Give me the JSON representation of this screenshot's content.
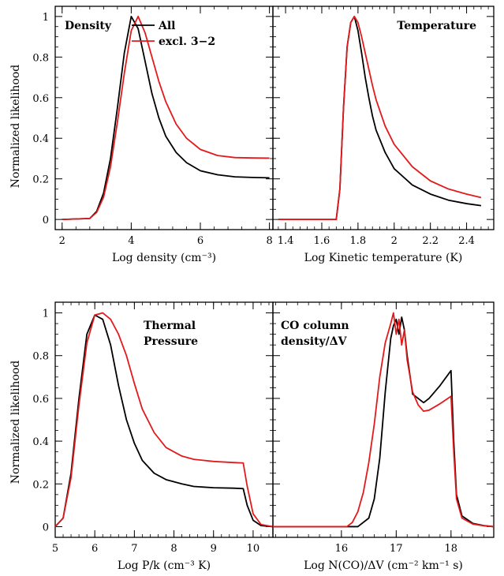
{
  "ylabel": "Normalized likelihood",
  "legend": [
    {
      "name": "All",
      "color": "#000000"
    },
    {
      "name": "excl. 3−2",
      "color": "#e31a1c"
    }
  ],
  "colors": {
    "all": "#000000",
    "excl": "#e31a1c"
  },
  "chart_data": [
    {
      "type": "line",
      "title": "Density",
      "xlabel": "Log density (cm⁻³)",
      "xlim": [
        1.8,
        8.1
      ],
      "ylim": [
        -0.05,
        1.05
      ],
      "xticks": [
        2,
        4,
        6,
        8
      ],
      "yticks": [
        0,
        0.2,
        0.4,
        0.6,
        0.8,
        1
      ],
      "grid": false,
      "series": [
        {
          "name": "All",
          "x": [
            2,
            2.8,
            3.0,
            3.2,
            3.4,
            3.6,
            3.8,
            4.0,
            4.2,
            4.4,
            4.6,
            4.8,
            5.0,
            5.3,
            5.6,
            6.0,
            6.5,
            7.0,
            7.5,
            8.0
          ],
          "y": [
            0,
            0.005,
            0.04,
            0.13,
            0.3,
            0.55,
            0.82,
            1.0,
            0.94,
            0.78,
            0.62,
            0.5,
            0.41,
            0.33,
            0.28,
            0.24,
            0.22,
            0.21,
            0.207,
            0.205
          ]
        },
        {
          "name": "excl. 3−2",
          "x": [
            2,
            2.8,
            3.0,
            3.2,
            3.4,
            3.6,
            3.8,
            4.0,
            4.2,
            4.4,
            4.6,
            4.8,
            5.0,
            5.3,
            5.6,
            6.0,
            6.5,
            7.0,
            7.5,
            8.0
          ],
          "y": [
            0,
            0.005,
            0.035,
            0.11,
            0.26,
            0.48,
            0.72,
            0.93,
            1.0,
            0.92,
            0.8,
            0.68,
            0.58,
            0.47,
            0.4,
            0.345,
            0.315,
            0.305,
            0.303,
            0.302
          ]
        }
      ]
    },
    {
      "type": "line",
      "title": "Temperature",
      "xlabel": "Log Kinetic temperature (K)",
      "xlim": [
        1.33,
        2.55
      ],
      "ylim": [
        -0.05,
        1.05
      ],
      "xticks": [
        1.4,
        1.6,
        1.8,
        2,
        2.2,
        2.4
      ],
      "yticks": [
        0,
        0.2,
        0.4,
        0.6,
        0.8,
        1
      ],
      "grid": false,
      "series": [
        {
          "name": "All",
          "x": [
            1.36,
            1.68,
            1.7,
            1.72,
            1.74,
            1.76,
            1.78,
            1.8,
            1.82,
            1.84,
            1.86,
            1.88,
            1.9,
            1.95,
            2.0,
            2.1,
            2.2,
            2.3,
            2.4,
            2.48
          ],
          "y": [
            0,
            0,
            0.15,
            0.55,
            0.85,
            0.97,
            1.0,
            0.93,
            0.82,
            0.7,
            0.6,
            0.51,
            0.44,
            0.33,
            0.25,
            0.17,
            0.125,
            0.095,
            0.078,
            0.068
          ]
        },
        {
          "name": "excl. 3−2",
          "x": [
            1.36,
            1.68,
            1.7,
            1.72,
            1.74,
            1.76,
            1.78,
            1.8,
            1.82,
            1.84,
            1.86,
            1.88,
            1.9,
            1.95,
            2.0,
            2.1,
            2.2,
            2.3,
            2.4,
            2.48
          ],
          "y": [
            0,
            0,
            0.15,
            0.55,
            0.85,
            0.97,
            1.0,
            0.97,
            0.9,
            0.82,
            0.74,
            0.66,
            0.59,
            0.46,
            0.37,
            0.26,
            0.19,
            0.15,
            0.125,
            0.108
          ]
        }
      ]
    },
    {
      "type": "line",
      "title": "Thermal\nPressure",
      "xlabel": "Log P/k (cm⁻³ K)",
      "xlim": [
        5.0,
        10.5
      ],
      "ylim": [
        -0.05,
        1.05
      ],
      "xticks": [
        5,
        6,
        7,
        8,
        9,
        10
      ],
      "yticks": [
        0,
        0.2,
        0.4,
        0.6,
        0.8,
        1
      ],
      "grid": false,
      "series": [
        {
          "name": "All",
          "x": [
            5.0,
            5.2,
            5.4,
            5.6,
            5.8,
            6.0,
            6.2,
            6.4,
            6.6,
            6.8,
            7.0,
            7.2,
            7.5,
            7.8,
            8.2,
            8.5,
            9.0,
            9.5,
            9.75,
            9.85,
            10.0,
            10.2,
            10.5
          ],
          "y": [
            0,
            0.04,
            0.25,
            0.6,
            0.9,
            0.99,
            0.97,
            0.85,
            0.66,
            0.5,
            0.39,
            0.31,
            0.25,
            0.22,
            0.2,
            0.188,
            0.182,
            0.18,
            0.178,
            0.1,
            0.03,
            0.005,
            0
          ]
        },
        {
          "name": "excl. 3−2",
          "x": [
            5.0,
            5.2,
            5.4,
            5.6,
            5.8,
            6.0,
            6.2,
            6.4,
            6.6,
            6.8,
            7.0,
            7.2,
            7.5,
            7.8,
            8.2,
            8.5,
            9.0,
            9.5,
            9.75,
            9.85,
            10.0,
            10.2,
            10.5
          ],
          "y": [
            0,
            0.04,
            0.23,
            0.57,
            0.86,
            0.99,
            1.0,
            0.97,
            0.9,
            0.8,
            0.67,
            0.55,
            0.44,
            0.37,
            0.33,
            0.315,
            0.305,
            0.3,
            0.298,
            0.19,
            0.06,
            0.01,
            0
          ]
        }
      ]
    },
    {
      "type": "line",
      "title": "CO column\ndensity/ΔV",
      "xlabel": "Log N(CO)/ΔV (cm⁻² km⁻¹ s)",
      "xlim": [
        14.75,
        18.78
      ],
      "ylim": [
        -0.05,
        1.05
      ],
      "xticks": [
        16,
        17,
        18
      ],
      "yticks": [
        0,
        0.2,
        0.4,
        0.6,
        0.8,
        1
      ],
      "grid": false,
      "series": [
        {
          "name": "All",
          "x": [
            14.75,
            16.3,
            16.5,
            16.6,
            16.7,
            16.8,
            16.9,
            16.95,
            17.0,
            17.05,
            17.1,
            17.15,
            17.2,
            17.3,
            17.4,
            17.5,
            17.6,
            17.8,
            18.0,
            18.05,
            18.1,
            18.2,
            18.4,
            18.6,
            18.78
          ],
          "y": [
            0,
            0,
            0.04,
            0.13,
            0.32,
            0.63,
            0.88,
            0.94,
            0.97,
            0.9,
            0.98,
            0.92,
            0.8,
            0.62,
            0.6,
            0.58,
            0.6,
            0.66,
            0.73,
            0.4,
            0.15,
            0.05,
            0.015,
            0.005,
            0
          ]
        },
        {
          "name": "excl. 3−2",
          "x": [
            14.75,
            16.1,
            16.2,
            16.3,
            16.4,
            16.5,
            16.6,
            16.7,
            16.8,
            16.9,
            16.95,
            17.0,
            17.05,
            17.1,
            17.15,
            17.2,
            17.3,
            17.4,
            17.5,
            17.6,
            17.8,
            18.0,
            18.05,
            18.1,
            18.2,
            18.4,
            18.6,
            18.78
          ],
          "y": [
            0,
            0,
            0.02,
            0.07,
            0.16,
            0.3,
            0.48,
            0.7,
            0.86,
            0.95,
            1.0,
            0.9,
            0.97,
            0.85,
            0.92,
            0.78,
            0.63,
            0.57,
            0.54,
            0.545,
            0.575,
            0.61,
            0.35,
            0.13,
            0.04,
            0.012,
            0.004,
            0
          ]
        }
      ]
    }
  ]
}
